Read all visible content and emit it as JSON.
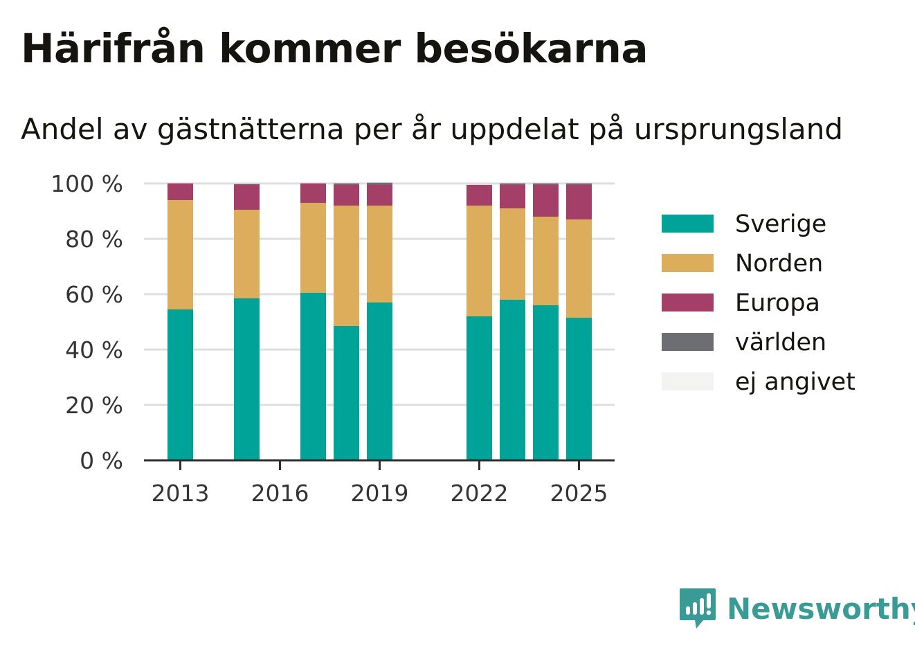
{
  "header": {
    "title": "Härifrån kommer besökarna",
    "subtitle": "Andel av gästnätterna per år uppdelat på ursprungsland"
  },
  "brand": {
    "name": "Newsworthy",
    "color": "#3a9a95",
    "icon": "newsworthy-logo-icon"
  },
  "chart_data": {
    "type": "bar",
    "stacked": true,
    "x": [
      2013,
      2015,
      2017,
      2018,
      2019,
      2022,
      2023,
      2024,
      2025
    ],
    "x_ticks": [
      2013,
      2016,
      2019,
      2022,
      2025
    ],
    "x_ticks_text": [
      "2013",
      "2016",
      "2019",
      "2022",
      "2025"
    ],
    "ylim": [
      0,
      100
    ],
    "y_ticks": [
      0,
      20,
      40,
      60,
      80,
      100
    ],
    "y_ticks_text": [
      "0 %",
      "20 %",
      "40 %",
      "60 %",
      "80 %",
      "100 %"
    ],
    "grid": true,
    "legend_position": "right",
    "series": [
      {
        "name": "Sverige",
        "color": "#00a398",
        "values": [
          54.5,
          58.5,
          60.5,
          48.5,
          57.0,
          52.0,
          58.0,
          56.0,
          51.5
        ]
      },
      {
        "name": "Norden",
        "color": "#dcae5c",
        "values": [
          39.5,
          32.0,
          32.5,
          43.5,
          35.0,
          40.0,
          33.0,
          32.0,
          35.5
        ]
      },
      {
        "name": "Europa",
        "color": "#a43f67",
        "values": [
          6.0,
          9.0,
          7.0,
          7.5,
          7.5,
          7.5,
          8.5,
          11.5,
          12.5
        ]
      },
      {
        "name": "världen",
        "color": "#6d6d74",
        "values": [
          0.0,
          0.3,
          0.0,
          0.5,
          0.8,
          0.0,
          0.5,
          0.5,
          0.5
        ]
      },
      {
        "name": "ej angivet",
        "color": "#f3f3f1",
        "values": [
          0,
          0,
          0,
          0,
          0,
          0,
          0,
          0,
          0
        ]
      }
    ]
  }
}
